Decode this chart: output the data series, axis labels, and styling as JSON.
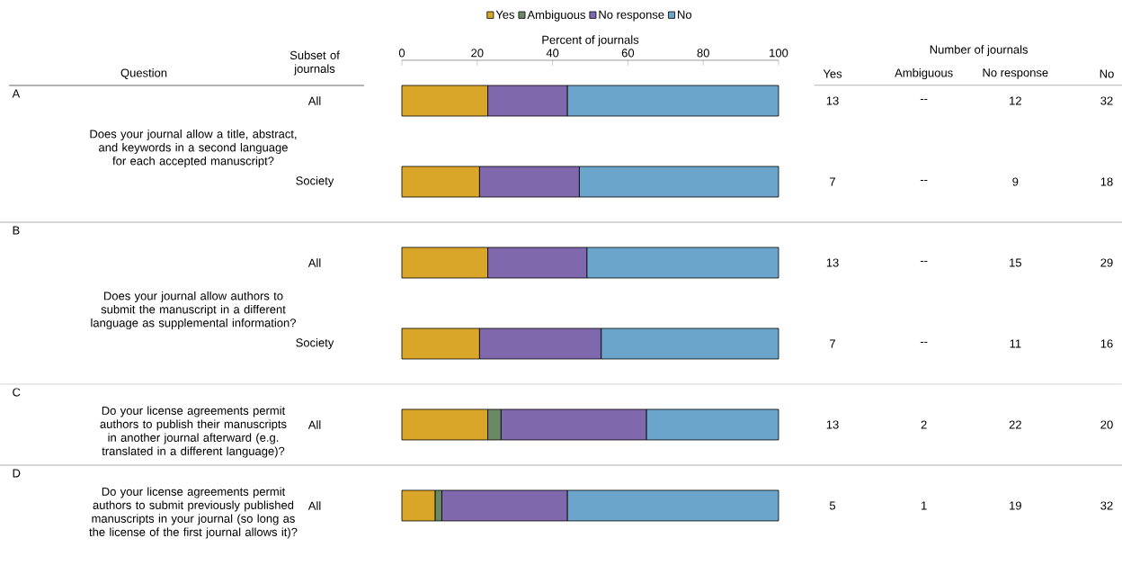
{
  "chart_data": [
    {
      "type": "bar",
      "orientation": "horizontal",
      "stacked": true,
      "xlabel": "Percent of journals",
      "categories": [
        "All",
        "Society",
        "All",
        "Society",
        "All",
        "All"
      ],
      "series": [
        {
          "name": "Yes",
          "color": "#d9a629",
          "values": [
            22.8,
            20.6,
            22.8,
            20.6,
            22.8,
            8.8
          ]
        },
        {
          "name": "Ambiguous",
          "color": "#6a8a66",
          "values": [
            null,
            null,
            null,
            null,
            3.5,
            1.8
          ]
        },
        {
          "name": "No response",
          "color": "#7f68ab",
          "values": [
            21.1,
            26.5,
            26.3,
            32.3,
            38.6,
            33.3
          ]
        },
        {
          "name": "No",
          "color": "#6ca5cb",
          "values": [
            56.1,
            52.9,
            50.9,
            47.1,
            35.1,
            56.1
          ]
        }
      ],
      "xlim": [
        0,
        100
      ],
      "xticks": [
        0,
        20,
        40,
        60,
        80,
        100
      ],
      "legend": "top",
      "annotations": [
        "Question",
        "Subset of journals",
        "A",
        "Does your journal allow a title, abstract, and keywords in a second language for each accepted manuscript?",
        "B",
        "Does your journal allow authors to submit the manuscript in a different language as supplemental information?",
        "C",
        "Do your license agreements permit authors to publish their manuscripts in another journal afterward (e.g. translated in a different language)?",
        "D",
        "Do your license agreements permit authors to submit previously published manuscripts in your journal (so long as the license of the first journal allows it)?"
      ]
    },
    {
      "type": "other",
      "title": "Number of journals",
      "annotations": [
        "Yes",
        "Ambiguous",
        "No response",
        "No",
        "13",
        "--",
        "12",
        "32",
        "7",
        "--",
        "9",
        "18",
        "13",
        "--",
        "15",
        "29",
        "7",
        "--",
        "11",
        "16",
        "13",
        "2",
        "22",
        "20",
        "5",
        "1",
        "19",
        "32"
      ]
    }
  ]
}
